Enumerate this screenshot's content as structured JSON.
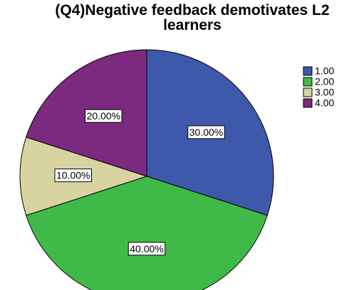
{
  "chart_data": {
    "type": "pie",
    "title": "(Q4)Negative feedback demotivates L2 learners",
    "categories": [
      "1.00",
      "2.00",
      "3.00",
      "4.00"
    ],
    "values": [
      30,
      40,
      10,
      20
    ],
    "value_labels": [
      "30.00%",
      "40.00%",
      "10.00%",
      "20.00%"
    ],
    "colors": [
      "#3e58ac",
      "#3fba48",
      "#d8d4a2",
      "#7c2a7f"
    ],
    "legend": "right"
  }
}
